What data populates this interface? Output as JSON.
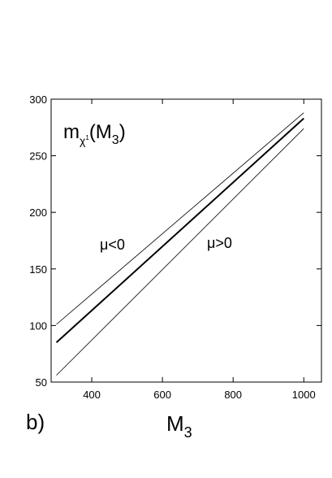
{
  "chart_data": {
    "type": "line",
    "title_parts": [
      "m",
      "χ",
      "1",
      "(M",
      "3",
      ")"
    ],
    "x_label_parts": [
      "M",
      "3"
    ],
    "panel_label": "b)",
    "annotations": [
      "μ<0",
      "μ>0"
    ],
    "x": [
      300,
      1000
    ],
    "series": [
      {
        "color": "#000000",
        "line_width": 0.8,
        "values": [
          101,
          288
        ]
      },
      {
        "color": "#000000",
        "line_width": 2,
        "values": [
          85,
          283
        ]
      },
      {
        "color": "#000000",
        "line_width": 0.8,
        "values": [
          56,
          274
        ]
      }
    ],
    "xlim": [
      285,
      1050
    ],
    "xticks": [
      400,
      600,
      800,
      1000
    ],
    "ylim": [
      50,
      300
    ],
    "yticks": [
      50,
      100,
      150,
      200,
      250,
      300
    ]
  }
}
